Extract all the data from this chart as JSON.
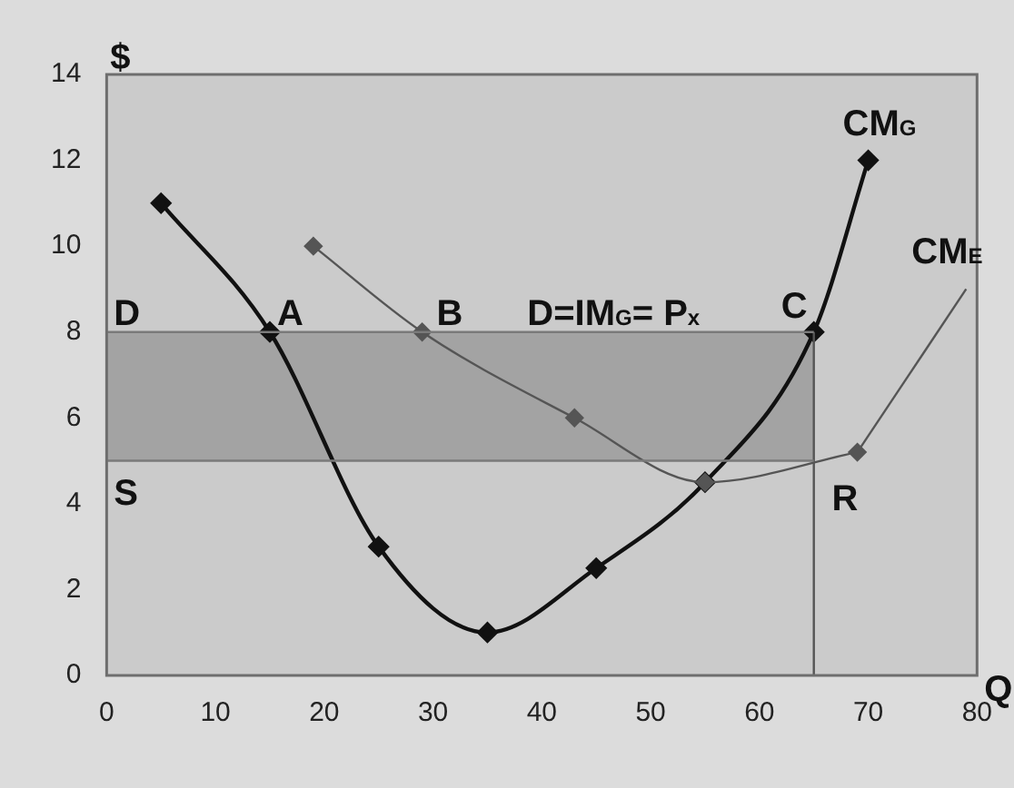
{
  "chart_data": {
    "type": "line",
    "xlabel": "Q",
    "ylabel": "$",
    "xlim": [
      0,
      80
    ],
    "xticks": [
      0,
      10,
      20,
      30,
      40,
      50,
      60,
      70,
      80
    ],
    "ylim": [
      0,
      14
    ],
    "yticks": [
      0,
      2,
      4,
      6,
      8,
      10,
      12,
      14
    ],
    "grid": false,
    "legend": false,
    "series": [
      {
        "color": "#7a7a7a",
        "x": [
          0,
          65
        ],
        "values": [
          8,
          8
        ],
        "lower": [
          5,
          5
        ],
        "upper": [
          8,
          8
        ],
        "marker": "none"
      },
      {
        "color": "#7a7a7a",
        "x": [
          0,
          65
        ],
        "values": [
          5,
          5
        ],
        "marker": "none"
      },
      {
        "color": "#555555",
        "x": [
          65,
          65
        ],
        "values": [
          0,
          8
        ],
        "marker": "none"
      },
      {
        "color": "#555555",
        "x": [
          19,
          29,
          43,
          55,
          69
        ],
        "values": [
          10,
          8,
          6,
          4.5,
          5.2
        ],
        "marker": "diamond"
      },
      {
        "color": "#555555",
        "x": [
          69,
          79
        ],
        "values": [
          5.2,
          9
        ],
        "marker": "none"
      },
      {
        "color": "#111111",
        "x": [
          5,
          15,
          25,
          35,
          45,
          55,
          65,
          70
        ],
        "values": [
          11,
          8,
          3,
          1,
          2.5,
          4.5,
          8,
          12
        ],
        "marker": "diamond"
      }
    ],
    "annotations": [
      {
        "text": "D",
        "x": 0,
        "y": 8
      },
      {
        "text": "A",
        "x": 15,
        "y": 8
      },
      {
        "text": "B",
        "x": 29,
        "y": 8
      },
      {
        "text": "D=IM$_{G}$= P$_{x}$",
        "x": 40,
        "y": 8
      },
      {
        "text": "C",
        "x": 65,
        "y": 8
      },
      {
        "text": "S",
        "x": 0,
        "y": 5
      },
      {
        "text": "R",
        "x": 69,
        "y": 5.2
      },
      {
        "text": "CM$_{G}$",
        "x": 70,
        "y": 12
      },
      {
        "text": "CM$_{E}$",
        "x": 79,
        "y": 9
      }
    ]
  }
}
